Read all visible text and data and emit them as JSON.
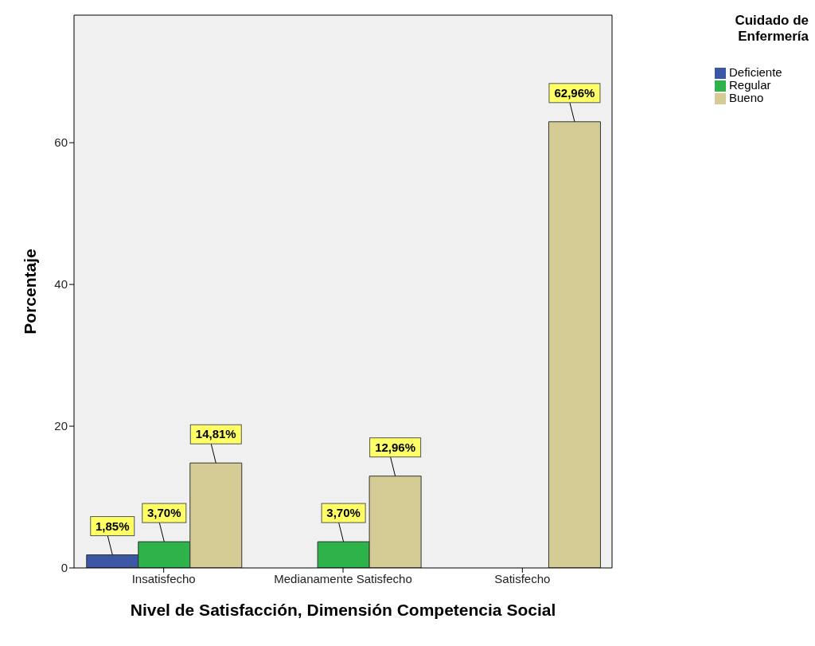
{
  "chart_data": {
    "type": "bar",
    "xlabel": "Nivel de Satisfacción, Dimensión Competencia Social",
    "ylabel": "Porcentaje",
    "legend_title": "Cuidado de Enfermería",
    "categories": [
      "Insatisfecho",
      "Medianamente Satisfecho",
      "Satisfecho"
    ],
    "series": [
      {
        "name": "Deficiente",
        "color": "#3a56a5",
        "values": [
          1.85,
          null,
          null
        ],
        "value_labels": [
          "1,85%",
          null,
          null
        ]
      },
      {
        "name": "Regular",
        "color": "#2db34a",
        "values": [
          3.7,
          3.7,
          null
        ],
        "value_labels": [
          "3,70%",
          "3,70%",
          null
        ]
      },
      {
        "name": "Bueno",
        "color": "#d4cc94",
        "values": [
          14.81,
          12.96,
          62.96
        ],
        "value_labels": [
          "14,81%",
          "12,96%",
          "62,96%"
        ]
      }
    ],
    "ylim": [
      0,
      78
    ],
    "yticks": [
      0,
      20,
      40,
      60
    ],
    "legend": "top right"
  }
}
